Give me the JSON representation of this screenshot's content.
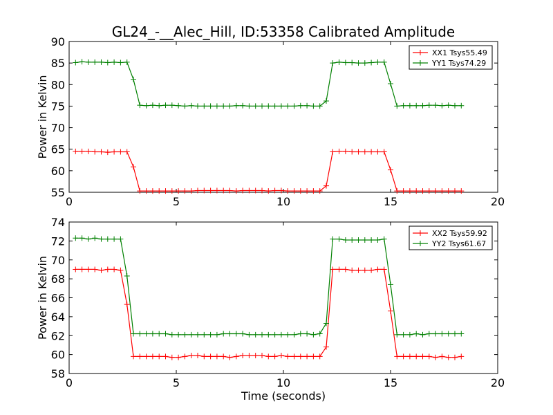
{
  "chart_data": [
    {
      "type": "line",
      "title": "GL24_-__Alec_Hill, ID:53358 Calibrated Amplitude",
      "xlabel": "",
      "ylabel": "Power in Kelvin",
      "xlim": [
        0,
        20
      ],
      "ylim": [
        55,
        90
      ],
      "xticks": [
        0,
        5,
        10,
        15,
        20
      ],
      "yticks": [
        55,
        60,
        65,
        70,
        75,
        80,
        85,
        90
      ],
      "grid": false,
      "legend_position": "top-right",
      "x": [
        0.3,
        0.6,
        0.9,
        1.2,
        1.5,
        1.8,
        2.1,
        2.4,
        2.7,
        3.0,
        3.3,
        3.6,
        3.9,
        4.2,
        4.5,
        4.8,
        5.1,
        5.4,
        5.7,
        6.0,
        6.3,
        6.6,
        6.9,
        7.2,
        7.5,
        7.8,
        8.1,
        8.4,
        8.7,
        9.0,
        9.3,
        9.6,
        9.9,
        10.2,
        10.5,
        10.8,
        11.1,
        11.4,
        11.7,
        12.0,
        12.3,
        12.6,
        12.9,
        13.2,
        13.5,
        13.8,
        14.1,
        14.4,
        14.7,
        15.0,
        15.3,
        15.6,
        15.9,
        16.2,
        16.5,
        16.8,
        17.1,
        17.4,
        17.7,
        18.0,
        18.3
      ],
      "series": [
        {
          "name": "XX1 Tsys55.49",
          "color": "#ff0000",
          "values": [
            64.5,
            64.5,
            64.5,
            64.4,
            64.4,
            64.3,
            64.4,
            64.4,
            64.4,
            60.9,
            55.3,
            55.3,
            55.3,
            55.3,
            55.3,
            55.3,
            55.3,
            55.3,
            55.3,
            55.4,
            55.4,
            55.4,
            55.4,
            55.4,
            55.4,
            55.3,
            55.4,
            55.4,
            55.4,
            55.4,
            55.3,
            55.4,
            55.4,
            55.3,
            55.3,
            55.3,
            55.3,
            55.3,
            55.3,
            56.5,
            64.4,
            64.5,
            64.5,
            64.4,
            64.4,
            64.4,
            64.4,
            64.4,
            64.4,
            60.2,
            55.3,
            55.3,
            55.3,
            55.3,
            55.3,
            55.3,
            55.3,
            55.3,
            55.3,
            55.3,
            55.3
          ]
        },
        {
          "name": "YY1 Tsys74.29",
          "color": "#008000",
          "values": [
            85.1,
            85.3,
            85.2,
            85.2,
            85.2,
            85.1,
            85.2,
            85.1,
            85.2,
            81.2,
            75.2,
            75.1,
            75.2,
            75.1,
            75.2,
            75.2,
            75.1,
            75.0,
            75.1,
            75.0,
            75.0,
            75.0,
            75.0,
            75.0,
            75.0,
            75.1,
            75.1,
            75.0,
            75.0,
            75.0,
            75.0,
            75.0,
            75.0,
            75.0,
            75.0,
            75.1,
            75.1,
            75.0,
            75.0,
            76.2,
            85.0,
            85.2,
            85.1,
            85.1,
            85.0,
            85.0,
            85.1,
            85.2,
            85.2,
            80.2,
            75.0,
            75.1,
            75.1,
            75.1,
            75.1,
            75.2,
            75.2,
            75.1,
            75.2,
            75.1,
            75.1
          ]
        }
      ]
    },
    {
      "type": "line",
      "title": "",
      "xlabel": "Time (seconds)",
      "ylabel": "Power in Kelvin",
      "xlim": [
        0,
        20
      ],
      "ylim": [
        58,
        74
      ],
      "xticks": [
        0,
        5,
        10,
        15,
        20
      ],
      "yticks": [
        58,
        60,
        62,
        64,
        66,
        68,
        70,
        72,
        74
      ],
      "grid": false,
      "legend_position": "top-right",
      "x": [
        0.3,
        0.6,
        0.9,
        1.2,
        1.5,
        1.8,
        2.1,
        2.4,
        2.7,
        3.0,
        3.3,
        3.6,
        3.9,
        4.2,
        4.5,
        4.8,
        5.1,
        5.4,
        5.7,
        6.0,
        6.3,
        6.6,
        6.9,
        7.2,
        7.5,
        7.8,
        8.1,
        8.4,
        8.7,
        9.0,
        9.3,
        9.6,
        9.9,
        10.2,
        10.5,
        10.8,
        11.1,
        11.4,
        11.7,
        12.0,
        12.3,
        12.6,
        12.9,
        13.2,
        13.5,
        13.8,
        14.1,
        14.4,
        14.7,
        15.0,
        15.3,
        15.6,
        15.9,
        16.2,
        16.5,
        16.8,
        17.1,
        17.4,
        17.7,
        18.0,
        18.3
      ],
      "series": [
        {
          "name": "XX2 Tsys59.92",
          "color": "#ff0000",
          "values": [
            69.0,
            69.0,
            69.0,
            69.0,
            68.9,
            69.0,
            69.0,
            68.9,
            65.3,
            59.8,
            59.8,
            59.8,
            59.8,
            59.8,
            59.8,
            59.7,
            59.7,
            59.8,
            59.9,
            59.9,
            59.8,
            59.8,
            59.8,
            59.8,
            59.7,
            59.8,
            59.9,
            59.9,
            59.9,
            59.9,
            59.8,
            59.8,
            59.9,
            59.8,
            59.8,
            59.8,
            59.8,
            59.8,
            59.8,
            60.8,
            69.0,
            69.0,
            69.0,
            68.9,
            68.9,
            68.9,
            68.9,
            69.0,
            69.0,
            64.6,
            59.8,
            59.8,
            59.8,
            59.8,
            59.8,
            59.8,
            59.7,
            59.8,
            59.7,
            59.7,
            59.8
          ]
        },
        {
          "name": "YY2 Tsys61.67",
          "color": "#008000",
          "values": [
            72.3,
            72.3,
            72.2,
            72.3,
            72.2,
            72.2,
            72.2,
            72.2,
            68.3,
            62.2,
            62.2,
            62.2,
            62.2,
            62.2,
            62.2,
            62.1,
            62.1,
            62.1,
            62.1,
            62.1,
            62.1,
            62.1,
            62.1,
            62.2,
            62.2,
            62.2,
            62.2,
            62.1,
            62.1,
            62.1,
            62.1,
            62.1,
            62.1,
            62.1,
            62.1,
            62.2,
            62.2,
            62.1,
            62.2,
            63.3,
            72.2,
            72.2,
            72.1,
            72.1,
            72.1,
            72.1,
            72.1,
            72.1,
            72.2,
            67.4,
            62.1,
            62.1,
            62.1,
            62.2,
            62.1,
            62.2,
            62.2,
            62.2,
            62.2,
            62.2,
            62.2
          ]
        }
      ]
    }
  ]
}
